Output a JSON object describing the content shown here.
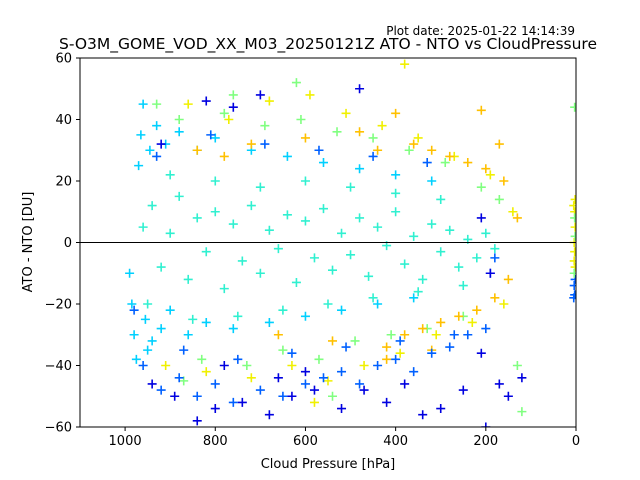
{
  "plot_date": "Plot date: 2025-01-22 14:14:39",
  "chart_data": {
    "type": "scatter",
    "title": "S-O3M_GOME_VOD_XX_M03_20250121Z ATO - NTO vs CloudPressure",
    "xlabel": "Cloud Pressure [hPa]",
    "ylabel": "ATO - NTO [DU]",
    "xlim": [
      1100,
      0
    ],
    "ylim": [
      -60,
      60
    ],
    "x_inverted": true,
    "marker": "+",
    "grid": false,
    "reference_line_y": 0,
    "x_ticks": [
      1000,
      800,
      600,
      400,
      200,
      0
    ],
    "y_ticks": [
      -60,
      -40,
      -20,
      0,
      20,
      40,
      60
    ],
    "colors": {
      "dark_blue": "#0000e0",
      "blue": "#0060ff",
      "cyan": "#00d0ff",
      "aqua": "#30f0d0",
      "green": "#80ff80",
      "yellow": "#f0f000",
      "orange": "#ffc000"
    },
    "series": [
      {
        "color_key": "aqua",
        "points": [
          [
            960,
            5
          ],
          [
            940,
            12
          ],
          [
            920,
            -8
          ],
          [
            900,
            3
          ],
          [
            880,
            15
          ],
          [
            860,
            -12
          ],
          [
            840,
            8
          ],
          [
            820,
            -3
          ],
          [
            800,
            10
          ],
          [
            780,
            -15
          ],
          [
            760,
            6
          ],
          [
            740,
            -6
          ],
          [
            720,
            12
          ],
          [
            700,
            -10
          ],
          [
            680,
            4
          ],
          [
            660,
            -2
          ],
          [
            640,
            9
          ],
          [
            620,
            -13
          ],
          [
            600,
            7
          ],
          [
            580,
            -5
          ],
          [
            560,
            11
          ],
          [
            540,
            -9
          ],
          [
            520,
            3
          ],
          [
            500,
            -4
          ],
          [
            480,
            8
          ],
          [
            460,
            -11
          ],
          [
            440,
            5
          ],
          [
            420,
            -1
          ],
          [
            400,
            10
          ],
          [
            380,
            -7
          ],
          [
            360,
            2
          ],
          [
            340,
            -12
          ],
          [
            320,
            6
          ],
          [
            300,
            -3
          ],
          [
            280,
            4
          ],
          [
            260,
            -8
          ],
          [
            240,
            1
          ],
          [
            220,
            -5
          ],
          [
            200,
            3
          ],
          [
            180,
            -2
          ],
          [
            950,
            -20
          ],
          [
            900,
            22
          ],
          [
            850,
            -25
          ],
          [
            800,
            20
          ],
          [
            750,
            -24
          ],
          [
            700,
            18
          ],
          [
            650,
            -22
          ],
          [
            600,
            20
          ],
          [
            550,
            -20
          ],
          [
            500,
            18
          ],
          [
            450,
            -18
          ],
          [
            400,
            16
          ],
          [
            350,
            -16
          ],
          [
            300,
            14
          ],
          [
            250,
            -14
          ]
        ]
      },
      {
        "color_key": "cyan",
        "points": [
          [
            990,
            -10
          ],
          [
            985,
            -20
          ],
          [
            980,
            -30
          ],
          [
            975,
            -38
          ],
          [
            970,
            25
          ],
          [
            965,
            35
          ],
          [
            960,
            45
          ],
          [
            955,
            -25
          ],
          [
            950,
            -35
          ],
          [
            945,
            30
          ],
          [
            940,
            -32
          ],
          [
            930,
            38
          ],
          [
            920,
            -28
          ],
          [
            910,
            32
          ],
          [
            900,
            -22
          ],
          [
            880,
            36
          ],
          [
            860,
            -30
          ],
          [
            840,
            30
          ],
          [
            820,
            -26
          ],
          [
            800,
            34
          ],
          [
            760,
            -28
          ],
          [
            720,
            30
          ],
          [
            680,
            -26
          ],
          [
            640,
            28
          ],
          [
            600,
            -24
          ],
          [
            560,
            26
          ],
          [
            520,
            -22
          ],
          [
            480,
            24
          ],
          [
            440,
            -20
          ],
          [
            400,
            22
          ],
          [
            360,
            -18
          ],
          [
            320,
            20
          ]
        ]
      },
      {
        "color_key": "green",
        "points": [
          [
            930,
            45
          ],
          [
            880,
            40
          ],
          [
            830,
            -38
          ],
          [
            780,
            42
          ],
          [
            730,
            -40
          ],
          [
            690,
            38
          ],
          [
            650,
            -35
          ],
          [
            610,
            40
          ],
          [
            570,
            -38
          ],
          [
            530,
            36
          ],
          [
            490,
            -32
          ],
          [
            450,
            34
          ],
          [
            410,
            -30
          ],
          [
            370,
            30
          ],
          [
            330,
            -28
          ],
          [
            290,
            26
          ],
          [
            250,
            -24
          ],
          [
            210,
            18
          ],
          [
            170,
            14
          ],
          [
            130,
            -40
          ],
          [
            870,
            -45
          ],
          [
            760,
            48
          ],
          [
            620,
            52
          ],
          [
            540,
            -50
          ],
          [
            120,
            -55
          ]
        ]
      },
      {
        "color_key": "yellow",
        "points": [
          [
            910,
            -40
          ],
          [
            860,
            45
          ],
          [
            820,
            -42
          ],
          [
            770,
            40
          ],
          [
            720,
            -44
          ],
          [
            680,
            46
          ],
          [
            630,
            -40
          ],
          [
            590,
            48
          ],
          [
            550,
            -45
          ],
          [
            510,
            42
          ],
          [
            470,
            -40
          ],
          [
            430,
            38
          ],
          [
            390,
            -36
          ],
          [
            350,
            34
          ],
          [
            310,
            -30
          ],
          [
            270,
            28
          ],
          [
            230,
            -26
          ],
          [
            190,
            22
          ],
          [
            160,
            -20
          ],
          [
            140,
            10
          ],
          [
            580,
            -52
          ],
          [
            380,
            58
          ]
        ]
      },
      {
        "color_key": "orange",
        "points": [
          [
            840,
            30
          ],
          [
            780,
            28
          ],
          [
            720,
            32
          ],
          [
            660,
            -30
          ],
          [
            600,
            34
          ],
          [
            540,
            -32
          ],
          [
            480,
            36
          ],
          [
            440,
            30
          ],
          [
            420,
            -34
          ],
          [
            400,
            42
          ],
          [
            380,
            -30
          ],
          [
            360,
            32
          ],
          [
            340,
            -28
          ],
          [
            320,
            30
          ],
          [
            300,
            -26
          ],
          [
            280,
            28
          ],
          [
            260,
            -24
          ],
          [
            240,
            26
          ],
          [
            220,
            -22
          ],
          [
            200,
            24
          ],
          [
            180,
            -18
          ],
          [
            160,
            20
          ],
          [
            150,
            -12
          ],
          [
            130,
            8
          ],
          [
            210,
            43
          ],
          [
            170,
            32
          ],
          [
            420,
            -38
          ],
          [
            320,
            -35
          ]
        ]
      },
      {
        "color_key": "blue",
        "points": [
          [
            980,
            -22
          ],
          [
            960,
            -40
          ],
          [
            920,
            -48
          ],
          [
            880,
            -44
          ],
          [
            840,
            -50
          ],
          [
            800,
            -46
          ],
          [
            760,
            -52
          ],
          [
            700,
            -48
          ],
          [
            650,
            -50
          ],
          [
            600,
            -46
          ],
          [
            560,
            -44
          ],
          [
            520,
            -42
          ],
          [
            480,
            -46
          ],
          [
            440,
            -40
          ],
          [
            400,
            -38
          ],
          [
            360,
            -42
          ],
          [
            320,
            -36
          ],
          [
            280,
            -34
          ],
          [
            240,
            -30
          ],
          [
            200,
            -28
          ],
          [
            930,
            28
          ],
          [
            870,
            -35
          ],
          [
            810,
            35
          ],
          [
            750,
            -38
          ],
          [
            690,
            32
          ],
          [
            630,
            -36
          ],
          [
            570,
            30
          ],
          [
            510,
            -34
          ],
          [
            450,
            28
          ],
          [
            390,
            -32
          ],
          [
            330,
            26
          ],
          [
            270,
            -30
          ],
          [
            190,
            -10
          ],
          [
            180,
            -5
          ],
          [
            4,
            -14
          ],
          [
            3,
            -17
          ],
          [
            2,
            -12
          ],
          [
            5,
            -18
          ]
        ]
      },
      {
        "color_key": "dark_blue",
        "points": [
          [
            940,
            -46
          ],
          [
            890,
            -50
          ],
          [
            840,
            -58
          ],
          [
            800,
            -54
          ],
          [
            740,
            -52
          ],
          [
            680,
            -56
          ],
          [
            630,
            -50
          ],
          [
            580,
            -48
          ],
          [
            520,
            -54
          ],
          [
            470,
            -48
          ],
          [
            420,
            -52
          ],
          [
            380,
            -46
          ],
          [
            340,
            -56
          ],
          [
            300,
            -54
          ],
          [
            250,
            -48
          ],
          [
            210,
            -36
          ],
          [
            200,
            -60
          ],
          [
            170,
            -46
          ],
          [
            150,
            -50
          ],
          [
            120,
            -44
          ],
          [
            820,
            46
          ],
          [
            760,
            44
          ],
          [
            700,
            48
          ],
          [
            480,
            50
          ],
          [
            190,
            -10
          ],
          [
            210,
            8
          ],
          [
            920,
            32
          ],
          [
            780,
            -40
          ],
          [
            660,
            -44
          ],
          [
            600,
            -42
          ]
        ]
      },
      {
        "color_key": "yellow",
        "points": [
          [
            3,
            10
          ],
          [
            2,
            5
          ],
          [
            4,
            0
          ],
          [
            3,
            -3
          ],
          [
            2,
            14
          ],
          [
            4,
            -6
          ],
          [
            5,
            12
          ],
          [
            2,
            -8
          ]
        ]
      },
      {
        "color_key": "green",
        "points": [
          [
            3,
            44
          ],
          [
            3,
            8
          ],
          [
            4,
            -10
          ],
          [
            2,
            2
          ]
        ]
      }
    ]
  }
}
